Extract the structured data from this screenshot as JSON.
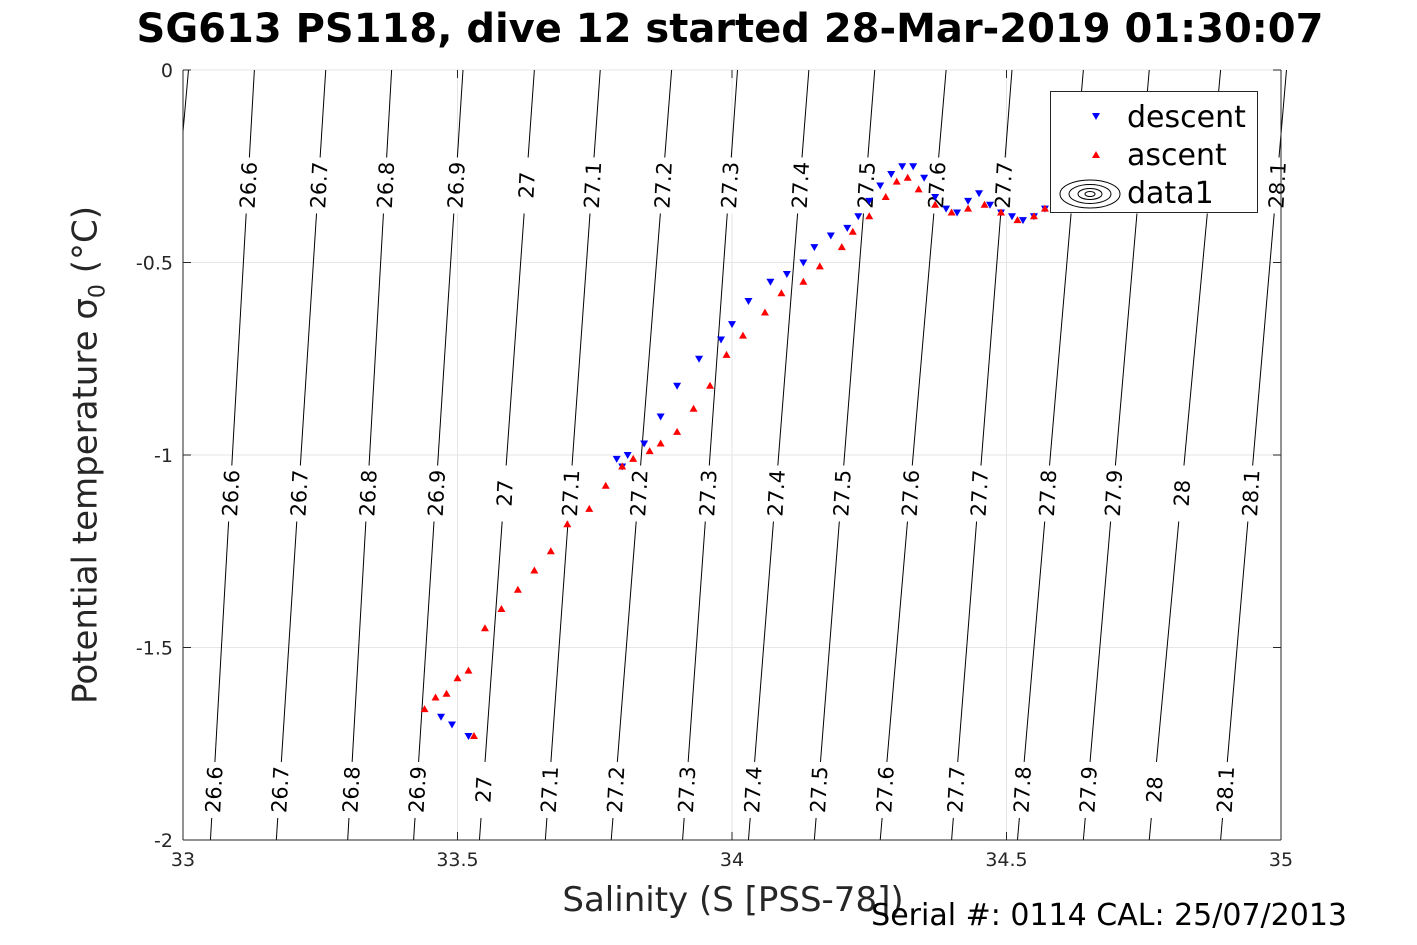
{
  "chart_data": {
    "type": "scatter",
    "title": "SG613 PS118, dive 12 started 28-Mar-2019 01:30:07",
    "xlabel": "Salinity (S [PSS-78])",
    "ylabel_main": "Potential temperature ",
    "ylabel_sym": "σ",
    "ylabel_sub": "0",
    "ylabel_unit": " (°C)",
    "xlim": [
      33,
      35
    ],
    "ylim": [
      -2,
      0
    ],
    "xticks": [
      33,
      33.5,
      34,
      34.5,
      35
    ],
    "xtick_labels": [
      "33",
      "33.5",
      "34",
      "34.5",
      "35"
    ],
    "yticks": [
      0,
      -0.5,
      -1,
      -1.5,
      -2
    ],
    "ytick_labels": [
      "0",
      "-0.5",
      "-1",
      "-1.5",
      "-2"
    ],
    "grid": true,
    "legend_position": "top-right",
    "series": [
      {
        "name": "descent",
        "color": "#0000ff",
        "marker": "triangle-down",
        "x": [
          33.49,
          33.47,
          33.52,
          33.79,
          33.8,
          33.81,
          33.84,
          33.87,
          33.9,
          33.94,
          33.98,
          34.0,
          34.03,
          34.07,
          34.1,
          34.13,
          34.15,
          34.18,
          34.21,
          34.23,
          34.25,
          34.27,
          34.29,
          34.31,
          34.33,
          34.35,
          34.37,
          34.39,
          34.41,
          34.43,
          34.45,
          34.47,
          34.49,
          34.51,
          34.53,
          34.55,
          34.57
        ],
        "y": [
          -1.7,
          -1.68,
          -1.73,
          -1.01,
          -1.03,
          -1.0,
          -0.97,
          -0.9,
          -0.82,
          -0.75,
          -0.7,
          -0.66,
          -0.6,
          -0.55,
          -0.53,
          -0.5,
          -0.46,
          -0.43,
          -0.41,
          -0.38,
          -0.34,
          -0.3,
          -0.27,
          -0.25,
          -0.25,
          -0.28,
          -0.33,
          -0.36,
          -0.37,
          -0.34,
          -0.32,
          -0.35,
          -0.37,
          -0.38,
          -0.39,
          -0.38,
          -0.36
        ]
      },
      {
        "name": "ascent",
        "color": "#ff0000",
        "marker": "triangle-up",
        "x": [
          33.44,
          33.46,
          33.48,
          33.5,
          33.52,
          33.55,
          33.58,
          33.61,
          33.64,
          33.67,
          33.7,
          33.74,
          33.77,
          33.8,
          33.82,
          33.85,
          33.87,
          33.9,
          33.93,
          33.96,
          33.99,
          34.02,
          34.06,
          34.09,
          34.13,
          34.16,
          34.2,
          34.22,
          34.25,
          34.28,
          34.3,
          34.32,
          34.34,
          34.37,
          34.4,
          34.43,
          34.46,
          34.49,
          34.52,
          34.55,
          34.57,
          33.53
        ],
        "y": [
          -1.66,
          -1.63,
          -1.62,
          -1.58,
          -1.56,
          -1.45,
          -1.4,
          -1.35,
          -1.3,
          -1.25,
          -1.18,
          -1.14,
          -1.08,
          -1.03,
          -1.01,
          -0.99,
          -0.97,
          -0.94,
          -0.88,
          -0.82,
          -0.74,
          -0.69,
          -0.63,
          -0.58,
          -0.55,
          -0.51,
          -0.46,
          -0.42,
          -0.38,
          -0.33,
          -0.29,
          -0.28,
          -0.31,
          -0.35,
          -0.37,
          -0.36,
          -0.35,
          -0.37,
          -0.39,
          -0.38,
          -0.36,
          -1.73
        ]
      }
    ],
    "contours": {
      "name": "data1",
      "levels": [
        "26.6",
        "26.7",
        "26.8",
        "26.9",
        "27",
        "27.1",
        "27.2",
        "27.3",
        "27.4",
        "27.5",
        "27.6",
        "27.7",
        "27.8",
        "27.9",
        "28",
        "28.1"
      ],
      "salinity_at_top": [
        33.13,
        33.26,
        33.38,
        33.51,
        33.64,
        33.76,
        33.89,
        34.01,
        34.14,
        34.26,
        34.39,
        34.51,
        34.64,
        34.76,
        34.89,
        35.01
      ],
      "salinity_at_bottom": [
        33.05,
        33.17,
        33.3,
        33.42,
        33.54,
        33.66,
        33.78,
        33.91,
        34.03,
        34.15,
        34.27,
        34.4,
        34.52,
        34.64,
        34.76,
        34.89
      ]
    }
  },
  "legend": {
    "descent": "descent",
    "ascent": "ascent",
    "data1": "data1"
  },
  "footer": {
    "serial": "Serial #: 0114  CAL: 25/07/2013"
  }
}
